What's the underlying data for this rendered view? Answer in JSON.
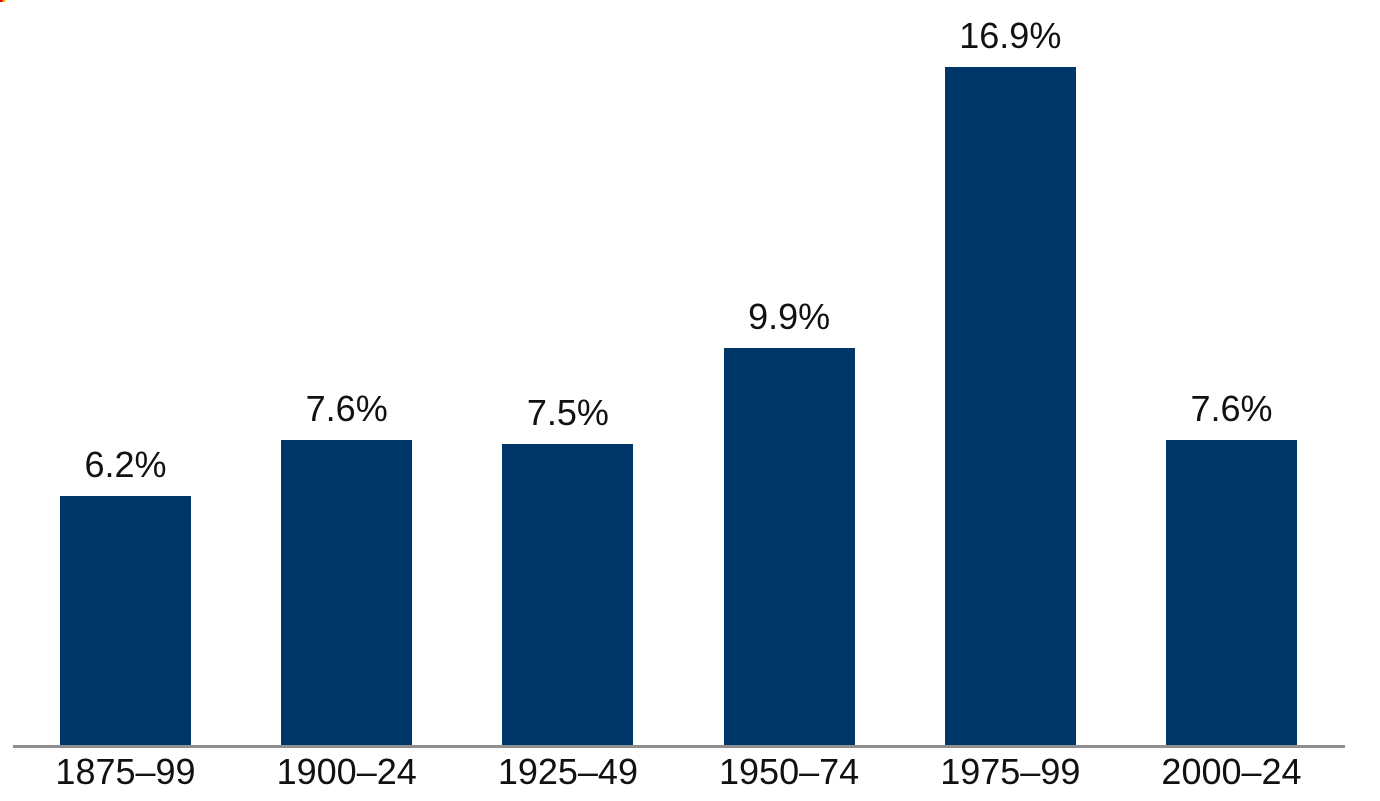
{
  "chart_data": {
    "type": "bar",
    "title": "",
    "xlabel": "",
    "ylabel": "",
    "categories": [
      "1875–99",
      "1900–24",
      "1925–49",
      "1950–74",
      "1975–99",
      "2000–24"
    ],
    "values": [
      6.2,
      7.6,
      7.5,
      9.9,
      16.9,
      7.6
    ],
    "value_labels": [
      "6.2%",
      "7.6%",
      "7.5%",
      "9.9%",
      "16.9%",
      "7.6%"
    ],
    "ylim": [
      0,
      18.5
    ],
    "grid": false,
    "legend": null,
    "y_axis_shown": false,
    "colors": {
      "bar": "#003668",
      "axis_line": "#8f8f8f",
      "text": "#111111",
      "background": "#ffffff"
    }
  },
  "decorations": {
    "corner_mark_colors": [
      "#d40000",
      "#ffb400"
    ]
  }
}
